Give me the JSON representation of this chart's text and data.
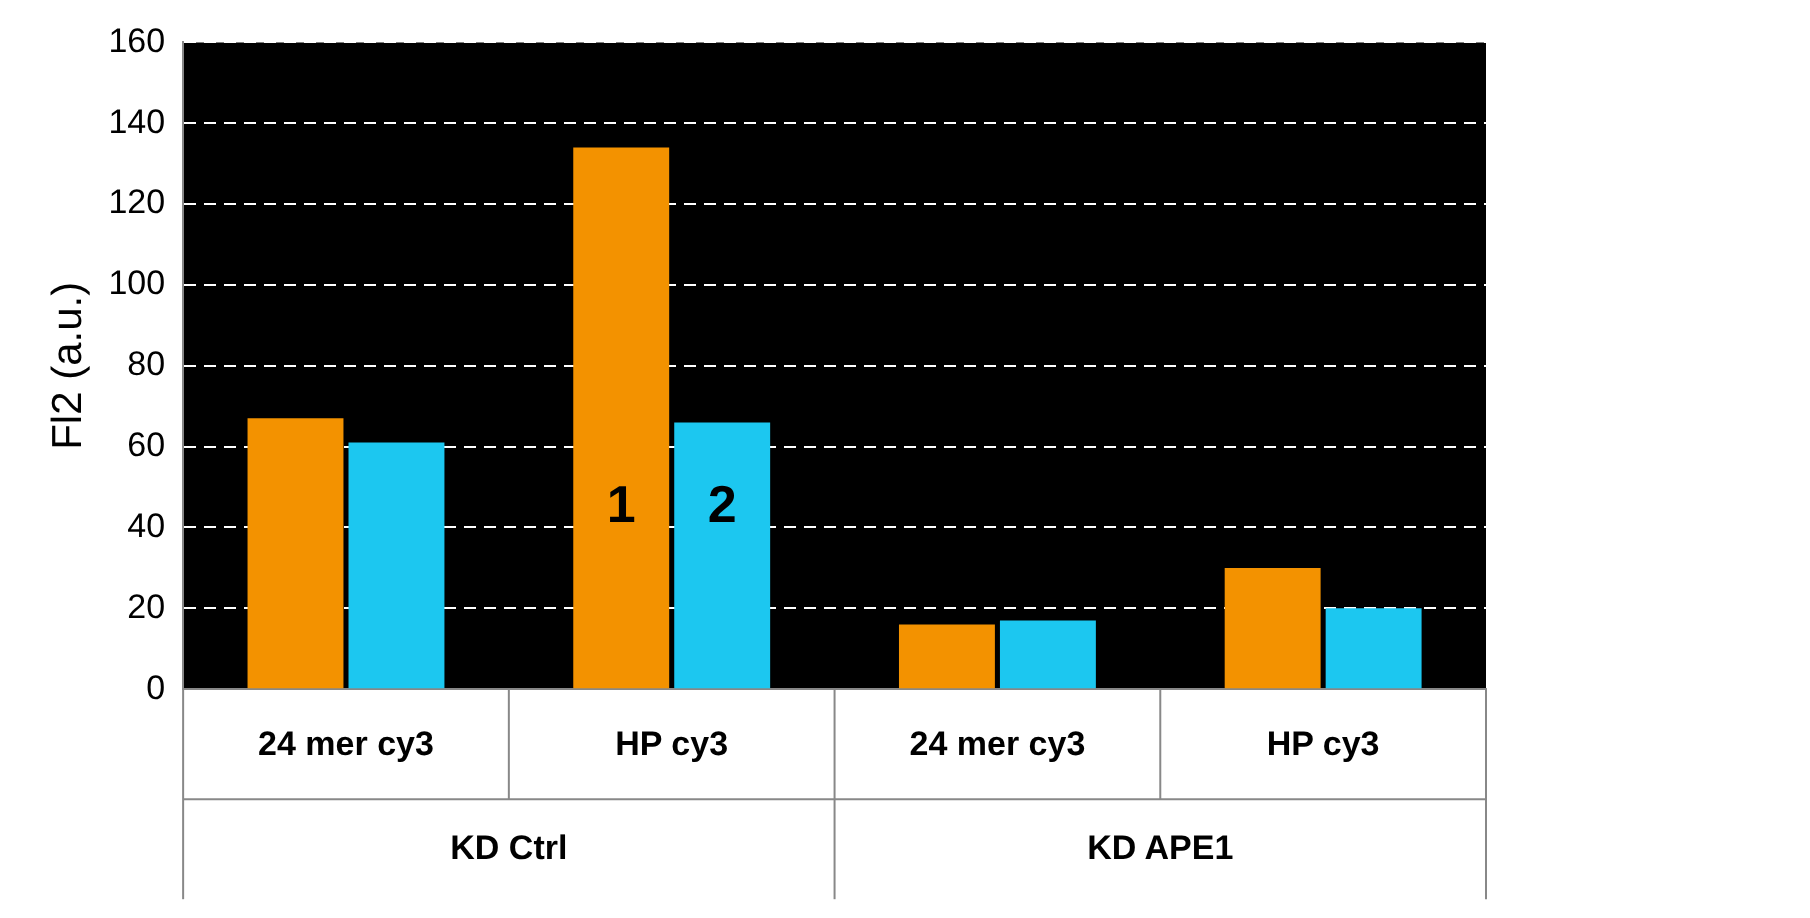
{
  "chart_data": {
    "type": "bar",
    "ylabel": "Fl2 (a.u.)",
    "categories": [
      "24 mer cy3",
      "HP cy3",
      "24 mer cy3",
      "HP cy3"
    ],
    "series": [
      {
        "color": "#f39200",
        "values": [
          67,
          134,
          16,
          30
        ]
      },
      {
        "color": "#1cc7f0",
        "values": [
          61,
          66,
          17,
          20
        ]
      }
    ],
    "ylim": [
      0,
      160
    ],
    "yticks": [
      0,
      20,
      40,
      60,
      80,
      100,
      120,
      140,
      160
    ],
    "grid": "y",
    "annotations": [
      "KD Ctrl",
      "KD APE1",
      {
        "text": "1",
        "x": "HP cy3",
        "y": 45
      },
      {
        "text": "2",
        "x": "HP cy3",
        "y": 45
      }
    ]
  }
}
